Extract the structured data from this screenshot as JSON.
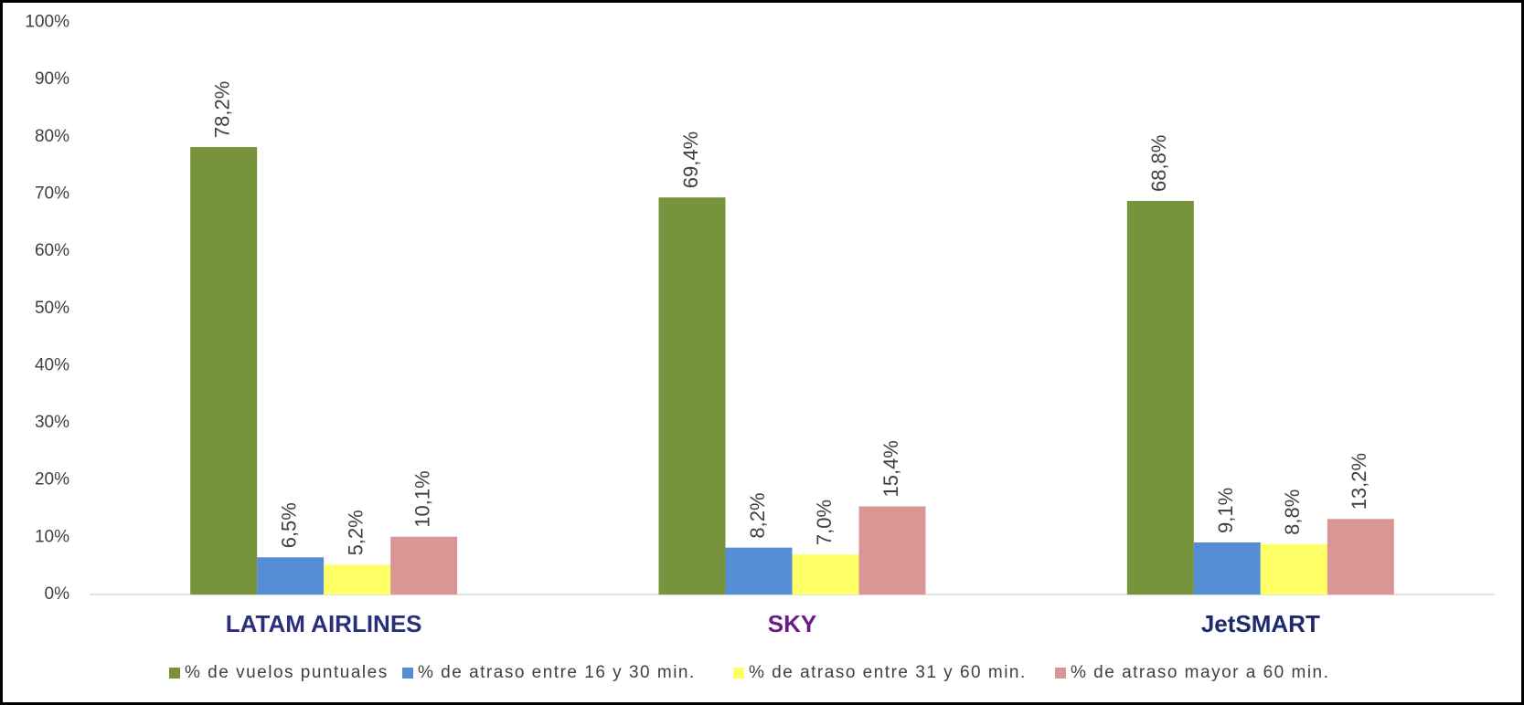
{
  "chart_data": {
    "type": "bar",
    "categories": [
      "LATAM AIRLINES",
      "SKY",
      "JetSMART"
    ],
    "series": [
      {
        "name": "% de vuelos puntuales",
        "color": "#77933c",
        "values": [
          78.2,
          69.4,
          68.8
        ],
        "value_labels": [
          "78,2%",
          "69,4%",
          "68,8%"
        ]
      },
      {
        "name": "% de atraso entre 16 y 30 min.",
        "color": "#558ed5",
        "values": [
          6.5,
          8.2,
          9.1
        ],
        "value_labels": [
          "6,5%",
          "8,2%",
          "9,1%"
        ]
      },
      {
        "name": "% de atraso entre 31 y 60 min.",
        "color": "#ffff66",
        "values": [
          5.2,
          7.0,
          8.8
        ],
        "value_labels": [
          "5,2%",
          "7,0%",
          "8,8%"
        ]
      },
      {
        "name": "% de atraso mayor a 60 min.",
        "color": "#d99694",
        "values": [
          10.1,
          15.4,
          13.2
        ],
        "value_labels": [
          "10,1%",
          "15,4%",
          "13,2%"
        ]
      }
    ],
    "ylim": [
      0,
      100
    ],
    "yticks": [
      {
        "value": 0,
        "label": "0%"
      },
      {
        "value": 10,
        "label": "10%"
      },
      {
        "value": 20,
        "label": "20%"
      },
      {
        "value": 30,
        "label": "30%"
      },
      {
        "value": 40,
        "label": "40%"
      },
      {
        "value": 50,
        "label": "50%"
      },
      {
        "value": 60,
        "label": "60%"
      },
      {
        "value": 70,
        "label": "70%"
      },
      {
        "value": 80,
        "label": "80%"
      },
      {
        "value": 90,
        "label": "90%"
      },
      {
        "value": 100,
        "label": "100%"
      }
    ],
    "grid": false,
    "legend": "bottom"
  }
}
